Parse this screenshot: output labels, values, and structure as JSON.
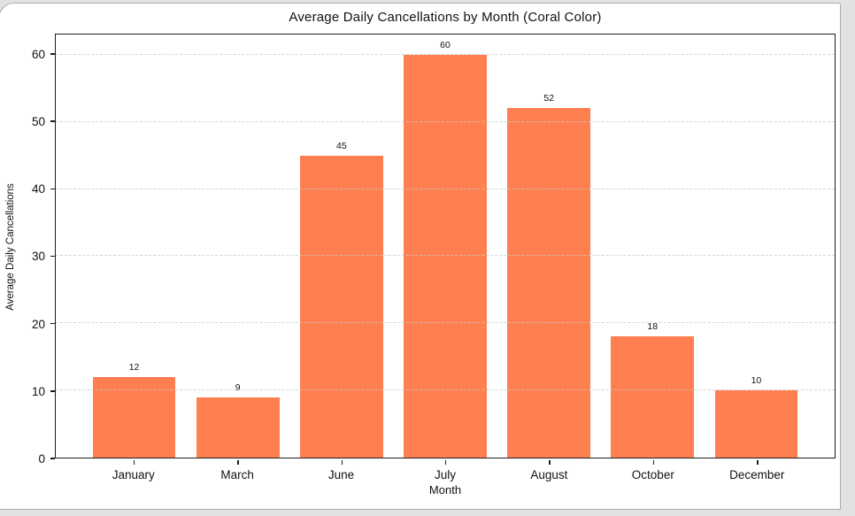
{
  "window": {
    "canvas_color": "#ffffff",
    "frame_border_color": "#ababab",
    "surround_color": "#e2e2e2"
  },
  "chart_data": {
    "type": "bar",
    "title": "Average Daily Cancellations by Month (Coral Color)",
    "xlabel": "Month",
    "ylabel": "Average Daily Cancellations",
    "categories": [
      "January",
      "March",
      "June",
      "July",
      "August",
      "October",
      "December"
    ],
    "values": [
      12,
      9,
      45,
      60,
      52,
      18,
      10
    ],
    "yticks": [
      0,
      10,
      20,
      30,
      40,
      50,
      60
    ],
    "ylim": [
      0,
      63
    ],
    "bar_color": "#FF7F50",
    "bar_label_color": "#111111",
    "grid": true,
    "grid_style": "dashed",
    "grid_color": "#d8d8d8",
    "legend_position": "none"
  }
}
